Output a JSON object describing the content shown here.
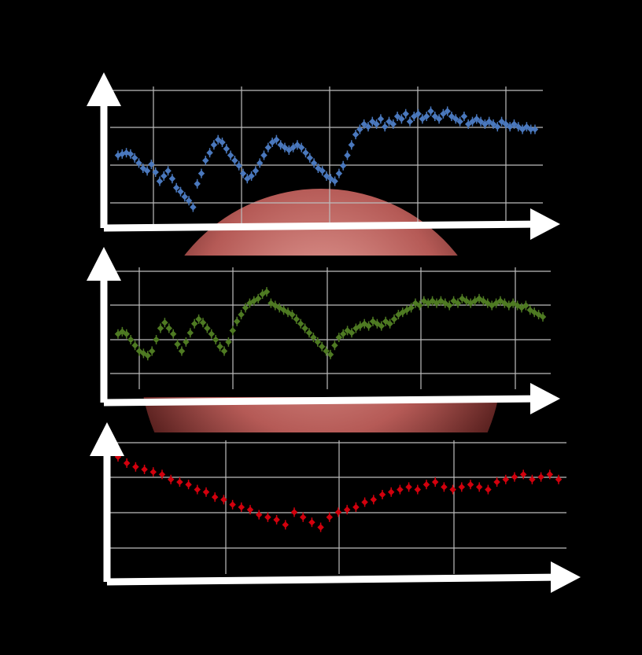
{
  "colors": {
    "background": "#000000",
    "grid": "#bdbdbd",
    "axis": "#ffffff",
    "planet_dark": "#5a1a18",
    "planet_light": "#d98a84"
  },
  "chart_data": [
    {
      "type": "scatter",
      "color": "#4a78bd",
      "error_bars": true,
      "grid": true,
      "x": [
        0.0,
        0.01,
        0.02,
        0.03,
        0.04,
        0.05,
        0.06,
        0.07,
        0.08,
        0.09,
        0.1,
        0.11,
        0.12,
        0.13,
        0.14,
        0.15,
        0.16,
        0.17,
        0.18,
        0.19,
        0.2,
        0.21,
        0.22,
        0.23,
        0.24,
        0.25,
        0.26,
        0.27,
        0.28,
        0.29,
        0.3,
        0.31,
        0.32,
        0.33,
        0.34,
        0.35,
        0.36,
        0.37,
        0.38,
        0.39,
        0.4,
        0.41,
        0.42,
        0.43,
        0.44,
        0.45,
        0.46,
        0.47,
        0.48,
        0.49,
        0.5,
        0.51,
        0.52,
        0.53,
        0.54,
        0.55,
        0.56,
        0.57,
        0.58,
        0.59,
        0.6,
        0.61,
        0.62,
        0.63,
        0.64,
        0.65,
        0.66,
        0.67,
        0.68,
        0.69,
        0.7,
        0.71,
        0.72,
        0.73,
        0.74,
        0.75,
        0.76,
        0.77,
        0.78,
        0.79,
        0.8,
        0.81,
        0.82,
        0.83,
        0.84,
        0.85,
        0.86,
        0.87,
        0.88,
        0.89,
        0.9,
        0.91,
        0.92,
        0.93,
        0.94,
        0.95,
        0.96,
        0.97,
        0.98,
        0.99,
        1.0
      ],
      "y": [
        0.5,
        0.51,
        0.52,
        0.51,
        0.48,
        0.44,
        0.4,
        0.38,
        0.43,
        0.37,
        0.3,
        0.34,
        0.38,
        0.32,
        0.25,
        0.22,
        0.18,
        0.15,
        0.1,
        0.28,
        0.36,
        0.46,
        0.52,
        0.58,
        0.62,
        0.6,
        0.55,
        0.5,
        0.46,
        0.42,
        0.36,
        0.32,
        0.34,
        0.38,
        0.44,
        0.5,
        0.56,
        0.6,
        0.62,
        0.58,
        0.56,
        0.54,
        0.56,
        0.58,
        0.56,
        0.52,
        0.48,
        0.44,
        0.4,
        0.38,
        0.34,
        0.32,
        0.3,
        0.36,
        0.42,
        0.5,
        0.58,
        0.66,
        0.7,
        0.74,
        0.72,
        0.76,
        0.74,
        0.78,
        0.72,
        0.76,
        0.74,
        0.8,
        0.78,
        0.82,
        0.76,
        0.8,
        0.82,
        0.78,
        0.8,
        0.84,
        0.8,
        0.78,
        0.82,
        0.84,
        0.8,
        0.78,
        0.76,
        0.8,
        0.74,
        0.76,
        0.78,
        0.76,
        0.74,
        0.76,
        0.74,
        0.72,
        0.76,
        0.74,
        0.72,
        0.74,
        0.72,
        0.7,
        0.72,
        0.7,
        0.7
      ],
      "ylim": [
        0,
        1
      ],
      "xlim": [
        0,
        1
      ]
    },
    {
      "type": "scatter",
      "color": "#4e7a22",
      "error_bars": true,
      "grid": true,
      "x": [
        0.0,
        0.01,
        0.02,
        0.03,
        0.04,
        0.05,
        0.06,
        0.07,
        0.08,
        0.09,
        0.1,
        0.11,
        0.12,
        0.13,
        0.14,
        0.15,
        0.16,
        0.17,
        0.18,
        0.19,
        0.2,
        0.21,
        0.22,
        0.23,
        0.24,
        0.25,
        0.26,
        0.27,
        0.28,
        0.29,
        0.3,
        0.31,
        0.32,
        0.33,
        0.34,
        0.35,
        0.36,
        0.37,
        0.38,
        0.39,
        0.4,
        0.41,
        0.42,
        0.43,
        0.44,
        0.45,
        0.46,
        0.47,
        0.48,
        0.49,
        0.5,
        0.51,
        0.52,
        0.53,
        0.54,
        0.55,
        0.56,
        0.57,
        0.58,
        0.59,
        0.6,
        0.61,
        0.62,
        0.63,
        0.64,
        0.65,
        0.66,
        0.67,
        0.68,
        0.69,
        0.7,
        0.71,
        0.72,
        0.73,
        0.74,
        0.75,
        0.76,
        0.77,
        0.78,
        0.79,
        0.8,
        0.81,
        0.82,
        0.83,
        0.84,
        0.85,
        0.86,
        0.87,
        0.88,
        0.89,
        0.9,
        0.91,
        0.92,
        0.93,
        0.94,
        0.95,
        0.96,
        0.97,
        0.98,
        0.99,
        1.0
      ],
      "y": [
        0.45,
        0.47,
        0.45,
        0.4,
        0.35,
        0.3,
        0.28,
        0.26,
        0.3,
        0.4,
        0.5,
        0.55,
        0.5,
        0.45,
        0.36,
        0.3,
        0.38,
        0.46,
        0.54,
        0.58,
        0.55,
        0.5,
        0.45,
        0.4,
        0.34,
        0.3,
        0.38,
        0.48,
        0.56,
        0.62,
        0.68,
        0.72,
        0.74,
        0.76,
        0.8,
        0.82,
        0.72,
        0.7,
        0.68,
        0.66,
        0.64,
        0.62,
        0.58,
        0.54,
        0.5,
        0.46,
        0.42,
        0.38,
        0.34,
        0.3,
        0.27,
        0.35,
        0.42,
        0.45,
        0.48,
        0.46,
        0.5,
        0.52,
        0.54,
        0.52,
        0.56,
        0.54,
        0.52,
        0.56,
        0.54,
        0.58,
        0.62,
        0.64,
        0.66,
        0.68,
        0.72,
        0.7,
        0.74,
        0.72,
        0.74,
        0.72,
        0.74,
        0.72,
        0.7,
        0.74,
        0.72,
        0.76,
        0.74,
        0.72,
        0.74,
        0.76,
        0.74,
        0.72,
        0.7,
        0.72,
        0.74,
        0.72,
        0.7,
        0.72,
        0.7,
        0.68,
        0.7,
        0.66,
        0.64,
        0.62,
        0.6
      ],
      "ylim": [
        0,
        1
      ],
      "xlim": [
        0,
        1
      ]
    },
    {
      "type": "scatter",
      "color": "#d2000d",
      "error_bars": true,
      "grid": true,
      "x": [
        0.0,
        0.02,
        0.04,
        0.06,
        0.08,
        0.1,
        0.12,
        0.14,
        0.16,
        0.18,
        0.2,
        0.22,
        0.24,
        0.26,
        0.28,
        0.3,
        0.32,
        0.34,
        0.36,
        0.38,
        0.4,
        0.42,
        0.44,
        0.46,
        0.48,
        0.5,
        0.52,
        0.54,
        0.56,
        0.58,
        0.6,
        0.62,
        0.64,
        0.66,
        0.68,
        0.7,
        0.72,
        0.74,
        0.76,
        0.78,
        0.8,
        0.82,
        0.84,
        0.86,
        0.88,
        0.9,
        0.92,
        0.94,
        0.96,
        0.98,
        1.0
      ],
      "y": [
        0.9,
        0.85,
        0.82,
        0.8,
        0.78,
        0.76,
        0.72,
        0.7,
        0.68,
        0.64,
        0.62,
        0.58,
        0.56,
        0.52,
        0.5,
        0.48,
        0.44,
        0.42,
        0.4,
        0.36,
        0.46,
        0.42,
        0.38,
        0.34,
        0.42,
        0.46,
        0.48,
        0.5,
        0.54,
        0.56,
        0.6,
        0.62,
        0.64,
        0.66,
        0.64,
        0.68,
        0.7,
        0.66,
        0.64,
        0.66,
        0.68,
        0.66,
        0.64,
        0.7,
        0.72,
        0.74,
        0.76,
        0.72,
        0.74,
        0.76,
        0.72
      ],
      "ylim": [
        0,
        1
      ],
      "xlim": [
        0,
        1
      ]
    }
  ]
}
